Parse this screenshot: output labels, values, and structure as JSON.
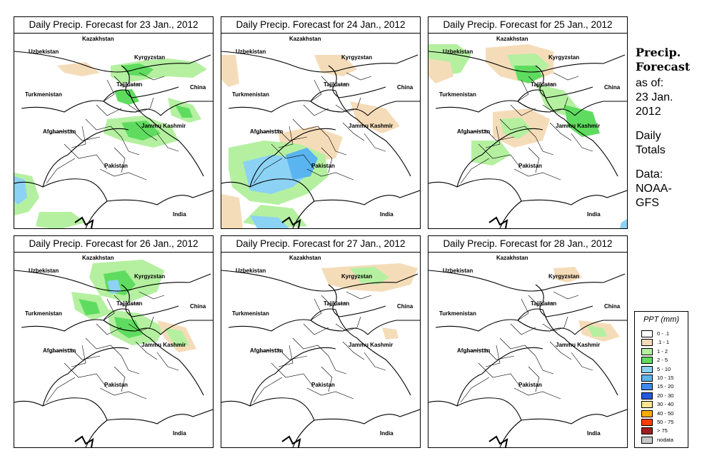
{
  "panels": [
    {
      "title": "Daily Precip. Forecast for  23 Jan., 2012"
    },
    {
      "title": "Daily Precip. Forecast for  24 Jan., 2012"
    },
    {
      "title": "Daily Precip. Forecast for  25 Jan., 2012"
    },
    {
      "title": "Daily Precip. Forecast for  26 Jan., 2012"
    },
    {
      "title": "Daily Precip. Forecast for  27 Jan., 2012"
    },
    {
      "title": "Daily Precip. Forecast for  28 Jan., 2012"
    }
  ],
  "map_labels": {
    "kazakhstan": "Kazakhstan",
    "uzbekistan": "Uzbekistan",
    "kyrgyzstan": "Kyrgyzstan",
    "tajikistan": "Tajikistan",
    "turkmenistan": "Turkmenistan",
    "china": "China",
    "afghanistan": "Afghanistan",
    "jammu_kashmir": "Jammu Kashmir",
    "pakistan": "Pakistan",
    "india": "India"
  },
  "side": {
    "title_line1": "Precip.",
    "title_line2": "Forecast",
    "asof_line1": "as of:",
    "asof_line2": "23 Jan.",
    "asof_line3": "2012",
    "totals_line1": "Daily",
    "totals_line2": "Totals",
    "data_line1": "Data:",
    "data_line2": "NOAA-",
    "data_line3": "GFS"
  },
  "legend": {
    "title": "PPT (mm)",
    "items": [
      {
        "label": "0 - .1",
        "color": "#ffffff"
      },
      {
        "label": ".1 - 1",
        "color": "#f5dcb9"
      },
      {
        "label": "1 - 2",
        "color": "#b4f0a0"
      },
      {
        "label": "2 - 5",
        "color": "#5fdc5f"
      },
      {
        "label": "5 - 10",
        "color": "#8cd2f5"
      },
      {
        "label": "10 - 15",
        "color": "#5ab4f0"
      },
      {
        "label": "15 - 20",
        "color": "#3c8cf0"
      },
      {
        "label": "20 - 30",
        "color": "#1e5adc"
      },
      {
        "label": "30 - 40",
        "color": "#ffe68c"
      },
      {
        "label": "40 - 50",
        "color": "#ffaa00"
      },
      {
        "label": "50 - 75",
        "color": "#ff3c00"
      },
      {
        "label": "> 75",
        "color": "#a01e1e"
      },
      {
        "label": "nodata",
        "color": "#c8c8c8"
      }
    ]
  }
}
